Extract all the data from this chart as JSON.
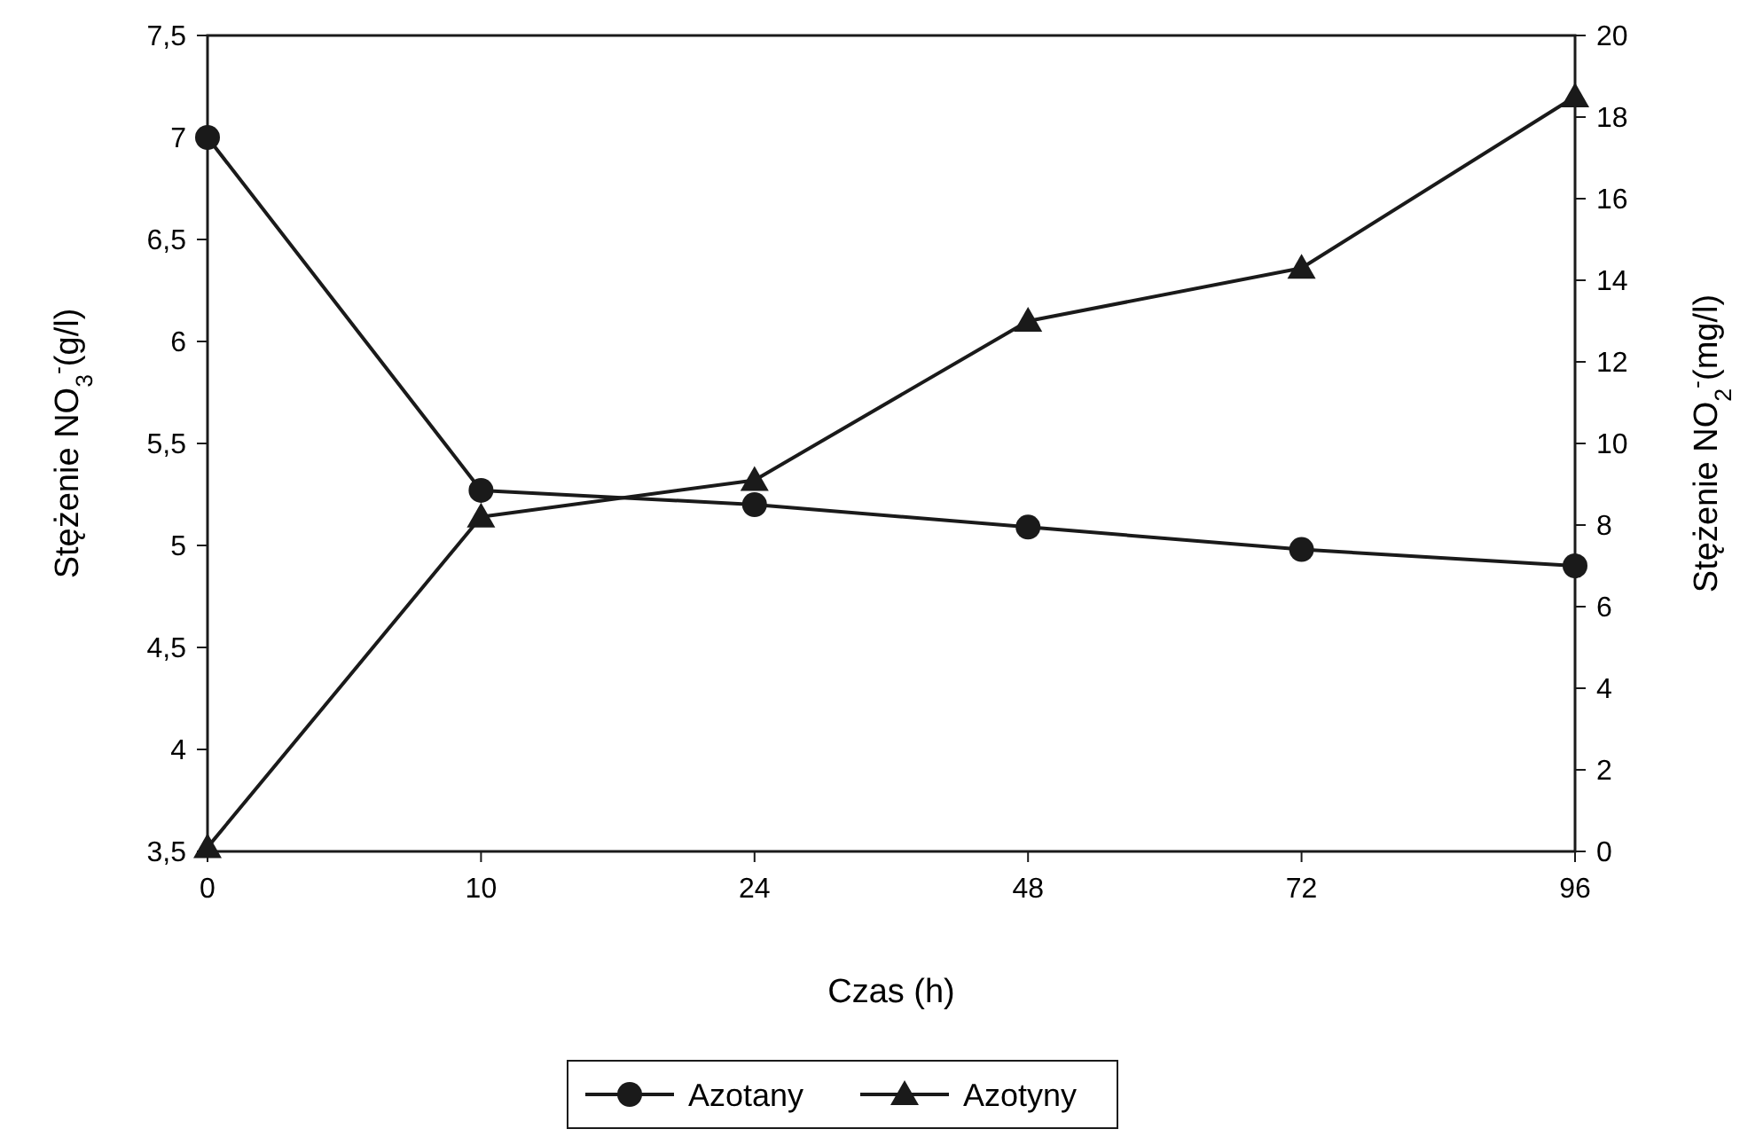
{
  "chart_data": {
    "type": "line",
    "xlabel": "Czas (h)",
    "ylabel": "Stężenie NO$_{3}$$^{-}$(g/l)",
    "y2label": "Stężenie NO$_{2}$$^{-}$(mg/l)",
    "categories": [
      "0",
      "10",
      "24",
      "48",
      "72",
      "96"
    ],
    "series": [
      {
        "name": "Azotany",
        "color": "#1a1a1a",
        "marker": "circle",
        "values": [
          7.0,
          5.27,
          5.2,
          5.09,
          4.98,
          4.9
        ]
      },
      {
        "name": "Azotyny",
        "color": "#1a1a1a",
        "marker": "triangle",
        "axis": "y2",
        "values": [
          0.1,
          8.2,
          9.1,
          13.0,
          14.3,
          18.5
        ]
      }
    ],
    "ylim": [
      3.5,
      7.5
    ],
    "yticks": [
      {
        "value": 3.5,
        "label": "3,5"
      },
      4,
      {
        "value": 4.5,
        "label": "4,5"
      },
      5,
      {
        "value": 5.5,
        "label": "5,5"
      },
      6,
      {
        "value": 6.5,
        "label": "6,5"
      },
      7,
      {
        "value": 7.5,
        "label": "7,5"
      }
    ],
    "y2lim": [
      0,
      20
    ],
    "y2ticks": [
      0,
      2,
      4,
      6,
      8,
      10,
      12,
      14,
      16,
      18,
      20
    ],
    "grid": false,
    "legend": "bottom",
    "line_style": "solid"
  }
}
